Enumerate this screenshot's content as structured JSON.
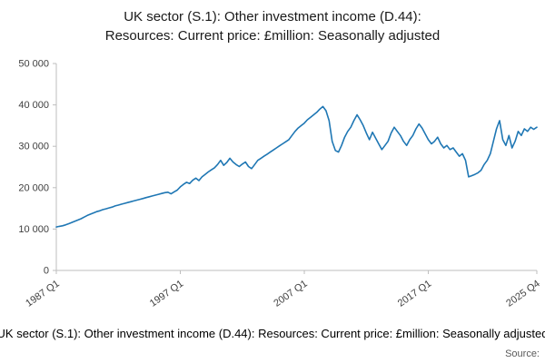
{
  "header": {
    "title_line1": "UK sector (S.1): Other investment income (D.44):",
    "title_line2": "Resources: Current price: £million: Seasonally adjusted"
  },
  "footer": {
    "caption": "UK sector (S.1): Other investment income (D.44): Resources: Current price: £million: Seasonally adjusted",
    "source_label": "Source:"
  },
  "chart_data": {
    "type": "line",
    "title": "UK sector (S.1): Other investment income (D.44): Resources: Current price: £million: Seasonally adjusted",
    "x_start": "1987 Q1",
    "x_end": "2025 Q4",
    "frequency": "quarterly",
    "x_tick_labels": [
      "1987 Q1",
      "1997 Q1",
      "2007 Q1",
      "2017 Q1",
      "2025 Q4"
    ],
    "x_tick_indices": [
      0,
      40,
      80,
      120,
      155
    ],
    "y_ticks": [
      0,
      10000,
      20000,
      30000,
      40000,
      50000
    ],
    "y_tick_labels": [
      "0",
      "10 000",
      "20 000",
      "30 000",
      "40 000",
      "50 000"
    ],
    "ylim": [
      0,
      50000
    ],
    "grid": false,
    "legend": false,
    "line_color": "#1f77b4",
    "axis_color": "#bdbdbd",
    "values": [
      10500,
      10650,
      10800,
      11000,
      11300,
      11600,
      11900,
      12200,
      12500,
      12900,
      13300,
      13600,
      13900,
      14200,
      14400,
      14700,
      14900,
      15100,
      15300,
      15600,
      15800,
      16000,
      16200,
      16400,
      16600,
      16800,
      17000,
      17200,
      17400,
      17600,
      17800,
      18000,
      18200,
      18400,
      18600,
      18800,
      18900,
      18500,
      19000,
      19400,
      20200,
      20800,
      21300,
      21000,
      21800,
      22300,
      21700,
      22600,
      23200,
      23800,
      24300,
      24800,
      25600,
      26600,
      25400,
      26100,
      27100,
      26200,
      25600,
      25100,
      25700,
      26200,
      25100,
      24600,
      25600,
      26600,
      27100,
      27600,
      28100,
      28600,
      29100,
      29600,
      30100,
      30600,
      31100,
      31600,
      32600,
      33600,
      34400,
      35000,
      35600,
      36400,
      37000,
      37600,
      38200,
      39000,
      39600,
      38600,
      36200,
      31200,
      29000,
      28600,
      30200,
      32200,
      33600,
      34600,
      36200,
      37600,
      36400,
      35000,
      33200,
      31600,
      33400,
      32000,
      30600,
      29200,
      30200,
      31200,
      33200,
      34600,
      33600,
      32600,
      31200,
      30200,
      31600,
      32600,
      34200,
      35400,
      34400,
      33000,
      31600,
      30600,
      31200,
      32200,
      30600,
      29600,
      30200,
      29200,
      29600,
      28600,
      27600,
      28200,
      26600,
      22600,
      22900,
      23200,
      23600,
      24200,
      25600,
      26600,
      28200,
      31200,
      34200,
      36200,
      31600,
      30200,
      32600,
      29600,
      31200,
      33600,
      32600,
      34200,
      33600,
      34600,
      34100,
      34600
    ]
  }
}
